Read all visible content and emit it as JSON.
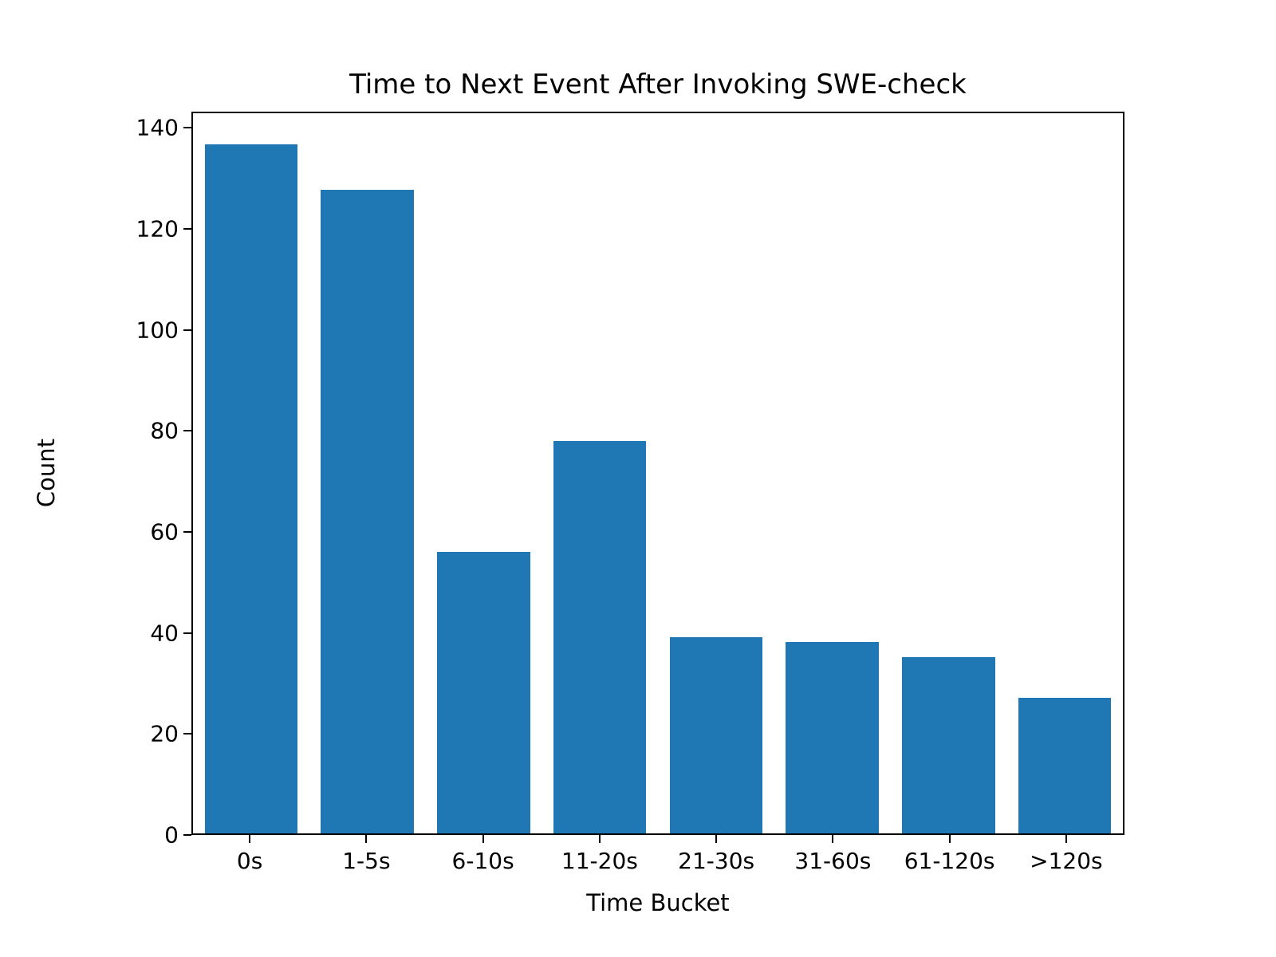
{
  "chart_data": {
    "type": "bar",
    "title": "Time to Next Event After Invoking SWE-check",
    "xlabel": "Time Bucket",
    "ylabel": "Count",
    "categories": [
      "0s",
      "1-5s",
      "6-10s",
      "11-20s",
      "21-30s",
      "31-60s",
      "61-120s",
      ">120s"
    ],
    "values": [
      137,
      128,
      56,
      78,
      39,
      38,
      35,
      27
    ],
    "yticks": [
      0,
      20,
      40,
      60,
      80,
      100,
      120,
      140
    ],
    "ylim": [
      0,
      143.2
    ],
    "bar_color": "#1f77b4",
    "bar_width_fraction": 0.8,
    "grid": "off",
    "legend": "none",
    "background_color": "#ffffff"
  }
}
